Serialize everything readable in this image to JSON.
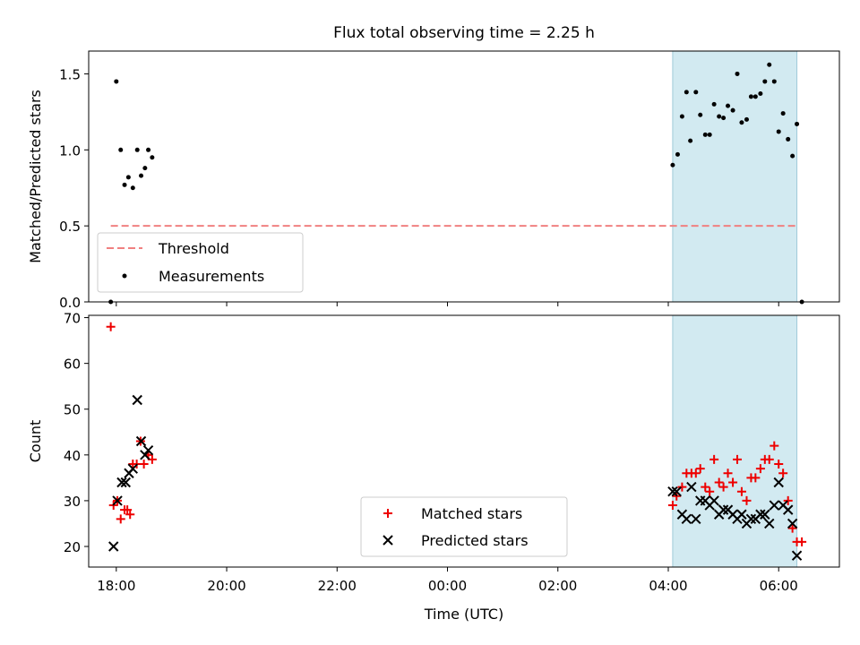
{
  "title": "Flux total observing time = 2.25 h",
  "colors": {
    "threshold": "#f08080",
    "measurement": "#000000",
    "matched": "#ee0000",
    "predicted": "#000000",
    "highlight": "#add8e6"
  },
  "chart_data": [
    {
      "type": "scatter",
      "title": "Flux total observing time = 2.25 h",
      "xlabel": "",
      "ylabel": "Matched/Predicted stars",
      "x_axis": "time (UTC), hours relative to 00:00",
      "xlim": [
        -6.5,
        7.1
      ],
      "ylim": [
        0.0,
        1.65
      ],
      "yticks": [
        0.0,
        0.5,
        1.0,
        1.5
      ],
      "yticklabels": [
        "0.0",
        "0.5",
        "1.0",
        "1.5"
      ],
      "highlight_span": [
        4.08,
        6.33
      ],
      "legend": {
        "placement": "lower-left",
        "entries": [
          "Threshold",
          "Measurements"
        ]
      },
      "threshold": {
        "name": "Threshold",
        "y": 0.5,
        "x_range": [
          -6.1,
          6.33
        ]
      },
      "series": [
        {
          "name": "Measurements",
          "points": [
            [
              -6.1,
              0.0
            ],
            [
              -6.0,
              1.45
            ],
            [
              -5.92,
              1.0
            ],
            [
              -5.85,
              0.77
            ],
            [
              -5.78,
              0.82
            ],
            [
              -5.7,
              0.75
            ],
            [
              -5.62,
              1.0
            ],
            [
              -5.55,
              0.83
            ],
            [
              -5.48,
              0.88
            ],
            [
              -5.42,
              1.0
            ],
            [
              -5.35,
              0.95
            ],
            [
              4.08,
              0.9
            ],
            [
              4.17,
              0.97
            ],
            [
              4.25,
              1.22
            ],
            [
              4.33,
              1.38
            ],
            [
              4.4,
              1.06
            ],
            [
              4.5,
              1.38
            ],
            [
              4.58,
              1.23
            ],
            [
              4.67,
              1.1
            ],
            [
              4.75,
              1.1
            ],
            [
              4.83,
              1.3
            ],
            [
              4.92,
              1.22
            ],
            [
              5.0,
              1.21
            ],
            [
              5.08,
              1.29
            ],
            [
              5.17,
              1.26
            ],
            [
              5.25,
              1.5
            ],
            [
              5.33,
              1.18
            ],
            [
              5.42,
              1.2
            ],
            [
              5.5,
              1.35
            ],
            [
              5.58,
              1.35
            ],
            [
              5.67,
              1.37
            ],
            [
              5.75,
              1.45
            ],
            [
              5.83,
              1.56
            ],
            [
              5.92,
              1.45
            ],
            [
              6.0,
              1.12
            ],
            [
              6.08,
              1.24
            ],
            [
              6.17,
              1.07
            ],
            [
              6.25,
              0.96
            ],
            [
              6.33,
              1.17
            ],
            [
              6.42,
              0.0
            ]
          ]
        }
      ]
    },
    {
      "type": "scatter",
      "title": "",
      "xlabel": "Time (UTC)",
      "ylabel": "Count",
      "x_axis": "time (UTC), hours relative to 00:00",
      "xlim": [
        -6.5,
        7.1
      ],
      "ylim": [
        15.5,
        70.5
      ],
      "yticks": [
        20,
        30,
        40,
        50,
        60,
        70
      ],
      "yticklabels": [
        "20",
        "30",
        "40",
        "50",
        "60",
        "70"
      ],
      "xticks": [
        -6,
        -4,
        -2,
        0,
        2,
        4,
        6
      ],
      "xticklabels": [
        "18:00",
        "20:00",
        "22:00",
        "00:00",
        "02:00",
        "04:00",
        "06:00"
      ],
      "highlight_span": [
        4.08,
        6.33
      ],
      "legend": {
        "placement": "lower-center",
        "entries": [
          "Matched stars",
          "Predicted stars"
        ]
      },
      "series": [
        {
          "name": "Matched stars",
          "marker": "plus",
          "points": [
            [
              -6.1,
              68
            ],
            [
              -6.05,
              29
            ],
            [
              -5.98,
              30
            ],
            [
              -5.92,
              26
            ],
            [
              -5.85,
              28
            ],
            [
              -5.8,
              28
            ],
            [
              -5.75,
              27
            ],
            [
              -5.7,
              38
            ],
            [
              -5.63,
              38
            ],
            [
              -5.56,
              43
            ],
            [
              -5.5,
              38
            ],
            [
              -5.42,
              40
            ],
            [
              -5.35,
              39
            ],
            [
              4.08,
              29
            ],
            [
              4.15,
              31
            ],
            [
              4.25,
              33
            ],
            [
              4.33,
              36
            ],
            [
              4.42,
              36
            ],
            [
              4.5,
              36
            ],
            [
              4.58,
              37
            ],
            [
              4.67,
              33
            ],
            [
              4.75,
              32
            ],
            [
              4.83,
              39
            ],
            [
              4.92,
              34
            ],
            [
              5.0,
              33
            ],
            [
              5.08,
              36
            ],
            [
              5.17,
              34
            ],
            [
              5.25,
              39
            ],
            [
              5.33,
              32
            ],
            [
              5.42,
              30
            ],
            [
              5.5,
              35
            ],
            [
              5.58,
              35
            ],
            [
              5.67,
              37
            ],
            [
              5.75,
              39
            ],
            [
              5.83,
              39
            ],
            [
              5.92,
              42
            ],
            [
              6.0,
              38
            ],
            [
              6.08,
              36
            ],
            [
              6.17,
              30
            ],
            [
              6.25,
              24
            ],
            [
              6.33,
              21
            ],
            [
              6.42,
              21
            ]
          ]
        },
        {
          "name": "Predicted stars",
          "marker": "x",
          "points": [
            [
              -6.05,
              20
            ],
            [
              -5.98,
              30
            ],
            [
              -5.9,
              34
            ],
            [
              -5.83,
              34
            ],
            [
              -5.77,
              36
            ],
            [
              -5.7,
              37
            ],
            [
              -5.62,
              52
            ],
            [
              -5.55,
              43
            ],
            [
              -5.48,
              40
            ],
            [
              -5.42,
              41
            ],
            [
              4.08,
              32
            ],
            [
              4.15,
              32
            ],
            [
              4.25,
              27
            ],
            [
              4.33,
              26
            ],
            [
              4.42,
              33
            ],
            [
              4.5,
              26
            ],
            [
              4.58,
              30
            ],
            [
              4.67,
              30
            ],
            [
              4.75,
              29
            ],
            [
              4.83,
              30
            ],
            [
              4.92,
              27
            ],
            [
              5.0,
              28
            ],
            [
              5.08,
              28
            ],
            [
              5.17,
              27
            ],
            [
              5.25,
              26
            ],
            [
              5.33,
              27
            ],
            [
              5.42,
              25
            ],
            [
              5.5,
              26
            ],
            [
              5.58,
              26
            ],
            [
              5.67,
              27
            ],
            [
              5.75,
              27
            ],
            [
              5.83,
              25
            ],
            [
              5.92,
              29
            ],
            [
              6.0,
              34
            ],
            [
              6.08,
              29
            ],
            [
              6.17,
              28
            ],
            [
              6.25,
              25
            ],
            [
              6.33,
              18
            ]
          ]
        }
      ]
    }
  ]
}
